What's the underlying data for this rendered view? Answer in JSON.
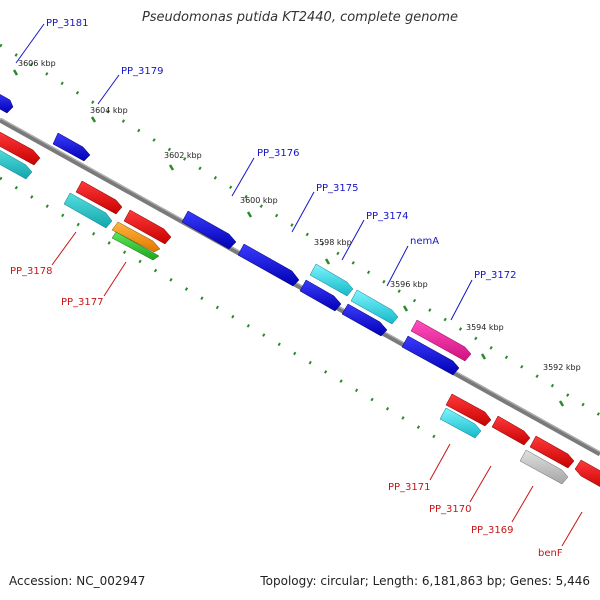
{
  "title": "Pseudomonas putida KT2440, complete genome",
  "accession": "Accession: NC_002947",
  "topology": "Topology: circular; Length: 6,181,863 bp; Genes: 5,446",
  "colors": {
    "backbone": "#808080",
    "ruler_dots": "#2a8a2a",
    "forward_label": "#1515c8",
    "reverse_label": "#c81515",
    "scale_label": "#222222"
  },
  "scale_labels": [
    "3606 kbp",
    "3604 kbp",
    "3602 kbp",
    "3600 kbp",
    "3598 kbp",
    "3596 kbp",
    "3594 kbp",
    "3592 kbp"
  ],
  "forward_gene_labels": [
    "PP_3181",
    "PP_3179",
    "PP_3176",
    "PP_3175",
    "PP_3174",
    "nemA",
    "PP_3172"
  ],
  "reverse_gene_labels": [
    "PP_3178",
    "PP_3177",
    "PP_3171",
    "PP_3170",
    "PP_3169",
    "benF"
  ]
}
